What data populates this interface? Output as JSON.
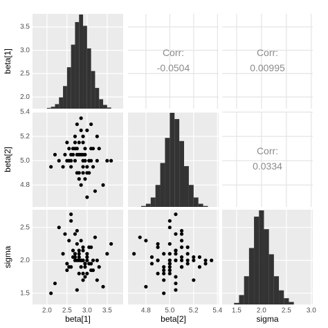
{
  "chart_data": {
    "type": "pairs",
    "variables": [
      {
        "name": "beta[1]",
        "samples": [
          2.85,
          2.6,
          3.1,
          2.9,
          2.7,
          3.0,
          2.45,
          3.25,
          2.8,
          2.95,
          2.55,
          3.15,
          2.75,
          2.9,
          3.4,
          2.3,
          2.85,
          2.65,
          3.05,
          2.95,
          2.7,
          3.2,
          2.5,
          2.8,
          3.0,
          2.9,
          2.6,
          3.3,
          2.75,
          2.85,
          2.2,
          3.5,
          2.95,
          2.7,
          3.1,
          2.8,
          2.65,
          2.9,
          3.0,
          2.55,
          2.85,
          3.15,
          2.75,
          2.4,
          3.05,
          2.9,
          2.6,
          2.8,
          3.25,
          2.7,
          2.95,
          3.6,
          2.1,
          2.85,
          3.0,
          2.75,
          2.5,
          3.1,
          2.9,
          2.8
        ],
        "xlim": [
          1.64,
          3.9
        ],
        "xticks": [
          {
            "value": 2,
            "label": "2.0"
          },
          2.5,
          {
            "value": 3,
            "label": "3.0"
          },
          3.5
        ],
        "ylim": [
          1.75,
          3.78
        ],
        "yticks": [
          {
            "value": 2,
            "label": "2.0"
          },
          2.5,
          {
            "value": 3,
            "label": "3.0"
          },
          3.5
        ],
        "bins": [
          2.0,
          2.1,
          2.2,
          2.3,
          2.4,
          2.5,
          2.6,
          2.7,
          2.8,
          2.9,
          3.0,
          3.1,
          3.2,
          3.3,
          3.4,
          3.5,
          3.6
        ],
        "counts": [
          2,
          5,
          12,
          30,
          60,
          110,
          170,
          230,
          250,
          220,
          160,
          100,
          55,
          25,
          10,
          3
        ]
      },
      {
        "name": "beta[2]",
        "samples": [
          5.05,
          4.95,
          5.1,
          5.0,
          5.15,
          4.9,
          5.05,
          5.2,
          4.85,
          5.0,
          5.1,
          4.95,
          5.3,
          5.05,
          4.8,
          5.0,
          5.25,
          5.1,
          4.9,
          5.05,
          5.0,
          4.75,
          5.15,
          5.05,
          4.95,
          5.2,
          5.0,
          5.1,
          4.9,
          5.35,
          5.05,
          5.0,
          4.85,
          5.1,
          5.0,
          5.15,
          5.05,
          4.95,
          5.25,
          5.0,
          4.8,
          5.1,
          5.05,
          4.95,
          5.0,
          5.15,
          5.05,
          4.9,
          5.0,
          5.2,
          5.1,
          5.0,
          4.95,
          5.05,
          4.7,
          5.1,
          5.0,
          5.3,
          4.9,
          5.05
        ],
        "xlim": [
          4.65,
          5.41
        ],
        "xticks": [
          4.8,
          {
            "value": 5,
            "label": "5.0"
          },
          5.2,
          5.4
        ],
        "ylim": [
          4.62,
          5.4
        ],
        "yticks": [
          4.8,
          {
            "value": 5,
            "label": "5.0"
          },
          5.2,
          5.4
        ],
        "bins": [
          4.76,
          4.8,
          4.84,
          4.88,
          4.92,
          4.96,
          5.0,
          5.04,
          5.08,
          5.12,
          5.16,
          5.2,
          5.24,
          5.28,
          5.32
        ],
        "counts": [
          3,
          10,
          30,
          70,
          140,
          220,
          300,
          280,
          210,
          130,
          70,
          30,
          10,
          3
        ]
      },
      {
        "name": "sigma",
        "samples": [
          2.0,
          1.9,
          2.2,
          1.8,
          2.1,
          2.0,
          2.4,
          1.7,
          2.05,
          1.95,
          2.3,
          1.85,
          2.0,
          2.15,
          1.6,
          2.5,
          1.9,
          2.05,
          2.2,
          1.75,
          2.0,
          2.35,
          1.95,
          2.1,
          1.8,
          2.0,
          2.6,
          1.9,
          2.25,
          2.0,
          1.65,
          2.1,
          1.95,
          2.4,
          1.85,
          2.0,
          2.15,
          1.7,
          2.05,
          1.9,
          2.3,
          2.0,
          1.55,
          2.1,
          1.95,
          2.2,
          2.7,
          1.8,
          2.0,
          2.05,
          1.9,
          2.25,
          1.5,
          2.0,
          2.1,
          2.45,
          1.85,
          1.95,
          2.0,
          2.15
        ],
        "xlim": [
          1.21,
          3.03
        ],
        "xticks": [
          1.5,
          {
            "value": 2,
            "label": "2.0"
          },
          2.5,
          {
            "value": 3,
            "label": "3.0"
          }
        ],
        "ylim": [
          1.33,
          2.77
        ],
        "yticks": [
          1.5,
          {
            "value": 2,
            "label": "2.0"
          },
          2.5
        ],
        "bins": [
          1.45,
          1.55,
          1.65,
          1.75,
          1.85,
          1.95,
          2.05,
          2.15,
          2.25,
          2.35,
          2.45,
          2.55,
          2.65
        ],
        "counts": [
          5,
          30,
          90,
          180,
          280,
          300,
          240,
          160,
          90,
          45,
          20,
          8
        ]
      }
    ],
    "corr_label": "Corr:",
    "correlations": [
      -0.0504,
      0.00995,
      0.0334
    ],
    "grid": true,
    "point_color": "#000000",
    "bar_color": "#333333",
    "panel_color": "#ebebeb"
  }
}
